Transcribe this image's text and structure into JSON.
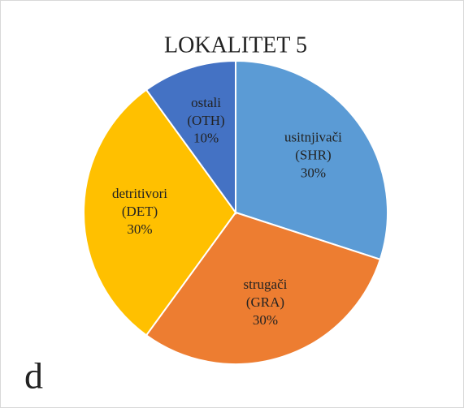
{
  "chart_data": {
    "type": "pie",
    "title": "LOKALITET 5",
    "panel_label": "d",
    "categories": [
      "usitnjivači (SHR)",
      "strugači (GRA)",
      "detritivori (DET)",
      "ostali (OTH)"
    ],
    "values": [
      30,
      30,
      30,
      10
    ],
    "value_labels": [
      "30%",
      "30%",
      "30%",
      "10%"
    ],
    "colors": [
      "#5b9bd5",
      "#ed7d31",
      "#ffc000",
      "#4472c4"
    ]
  }
}
